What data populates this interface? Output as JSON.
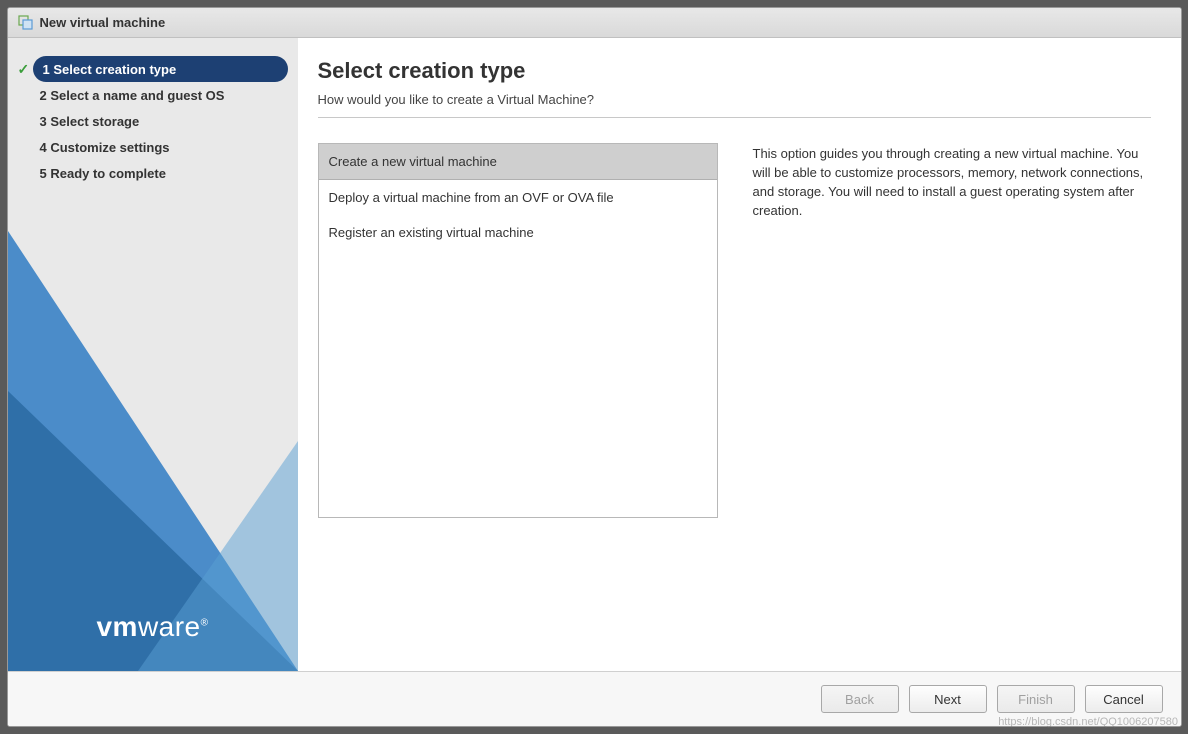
{
  "dialog": {
    "title": "New virtual machine",
    "icon_color_outer": "#6aa84f",
    "icon_color_inner": "#5b9bd5"
  },
  "sidebar": {
    "steps": [
      {
        "num": "1",
        "label": "Select creation type",
        "active": true,
        "done": true
      },
      {
        "num": "2",
        "label": "Select a name and guest OS",
        "active": false,
        "done": false
      },
      {
        "num": "3",
        "label": "Select storage",
        "active": false,
        "done": false
      },
      {
        "num": "4",
        "label": "Customize settings",
        "active": false,
        "done": false
      },
      {
        "num": "5",
        "label": "Ready to complete",
        "active": false,
        "done": false
      }
    ],
    "bg_colors": [
      "#4b8cc9",
      "#2f6fa8",
      "#5a9fd4"
    ],
    "logo_prefix": "vm",
    "logo_suffix": "ware"
  },
  "main": {
    "title": "Select creation type",
    "subtitle": "How would you like to create a Virtual Machine?",
    "options": [
      {
        "label": "Create a new virtual machine",
        "selected": true
      },
      {
        "label": "Deploy a virtual machine from an OVF or OVA file",
        "selected": false
      },
      {
        "label": "Register an existing virtual machine",
        "selected": false
      }
    ],
    "description": "This option guides you through creating a new virtual machine. You will be able to customize processors, memory, network connections, and storage. You will need to install a guest operating system after creation."
  },
  "footer": {
    "back": "Back",
    "next": "Next",
    "finish": "Finish",
    "cancel": "Cancel",
    "back_disabled": true,
    "finish_disabled": true
  },
  "watermark": "https://blog.csdn.net/QQ1006207580",
  "colors": {
    "active_step_bg": "#1d4073",
    "option_selected_bg": "#cfcfcf"
  }
}
